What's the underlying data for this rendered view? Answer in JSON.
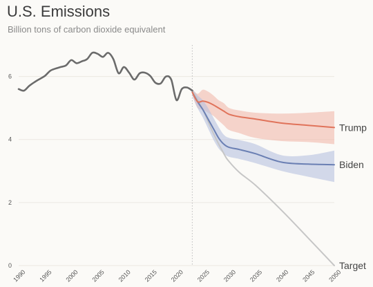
{
  "header": {
    "title": "U.S. Emissions",
    "subtitle": "Billion tons of carbon dioxide equivalent"
  },
  "colors": {
    "historical": "#6b6b6b",
    "trump": "#e0735a",
    "trump_band": "#f1b9ab",
    "biden": "#6a7fb3",
    "biden_band": "#b8c2df",
    "target": "#c6c6c6",
    "grid": "#ebe8e2",
    "divider": "#bbbbbb"
  },
  "chart_data": {
    "type": "line",
    "title": "U.S. Emissions",
    "subtitle": "Billion tons of carbon dioxide equivalent",
    "xlabel": "",
    "ylabel": "",
    "xlim": [
      1990,
      2050
    ],
    "ylim": [
      0,
      7
    ],
    "yticks": [
      0,
      2,
      4,
      6
    ],
    "xticks": [
      1990,
      1995,
      2000,
      2005,
      2010,
      2015,
      2020,
      2025,
      2030,
      2035,
      2040,
      2045,
      2050
    ],
    "grid": true,
    "projection_start": 2023,
    "series": [
      {
        "key": "historical",
        "x": [
          1990,
          1991,
          1992,
          1993,
          1994,
          1995,
          1996,
          1997,
          1998,
          1999,
          2000,
          2001,
          2002,
          2003,
          2004,
          2005,
          2006,
          2007,
          2008,
          2009,
          2010,
          2011,
          2012,
          2013,
          2014,
          2015,
          2016,
          2017,
          2018,
          2019,
          2020,
          2021,
          2022,
          2023
        ],
        "y": [
          5.6,
          5.55,
          5.7,
          5.82,
          5.92,
          6.02,
          6.18,
          6.25,
          6.3,
          6.35,
          6.52,
          6.42,
          6.48,
          6.55,
          6.75,
          6.72,
          6.62,
          6.75,
          6.55,
          6.1,
          6.3,
          6.12,
          5.9,
          6.1,
          6.12,
          6.02,
          5.8,
          5.78,
          6.0,
          5.9,
          5.25,
          5.6,
          5.65,
          5.55
        ]
      },
      {
        "key": "trump",
        "name": "Trump",
        "x": [
          2023,
          2024,
          2025,
          2026,
          2027,
          2028,
          2029,
          2030,
          2032,
          2035,
          2040,
          2045,
          2050
        ],
        "y": [
          5.5,
          5.2,
          5.22,
          5.18,
          5.1,
          5.0,
          4.9,
          4.8,
          4.72,
          4.65,
          4.52,
          4.45,
          4.38
        ],
        "band_low": [
          5.4,
          5.0,
          4.95,
          4.85,
          4.75,
          4.6,
          4.45,
          4.3,
          4.2,
          4.05,
          3.95,
          3.92,
          3.85
        ],
        "band_high": [
          5.6,
          5.45,
          5.58,
          5.52,
          5.4,
          5.25,
          5.15,
          5.0,
          4.92,
          4.85,
          4.82,
          4.85,
          4.9
        ]
      },
      {
        "key": "biden",
        "name": "Biden",
        "x": [
          2023,
          2024,
          2025,
          2026,
          2027,
          2028,
          2029,
          2030,
          2032,
          2035,
          2040,
          2045,
          2050
        ],
        "y": [
          5.5,
          5.2,
          4.95,
          4.65,
          4.35,
          4.05,
          3.85,
          3.75,
          3.68,
          3.55,
          3.28,
          3.22,
          3.2
        ],
        "band_low": [
          5.4,
          5.0,
          4.7,
          4.35,
          4.0,
          3.72,
          3.55,
          3.45,
          3.38,
          3.25,
          3.0,
          2.82,
          2.65
        ],
        "band_high": [
          5.6,
          5.4,
          5.25,
          5.0,
          4.7,
          4.4,
          4.15,
          4.05,
          3.98,
          3.85,
          3.5,
          3.5,
          3.65
        ]
      },
      {
        "key": "target",
        "name": "Target",
        "x": [
          2023,
          2025,
          2027,
          2029,
          2030,
          2032,
          2035,
          2040,
          2045,
          2050
        ],
        "y": [
          5.55,
          4.95,
          4.2,
          3.55,
          3.3,
          2.95,
          2.55,
          1.75,
          0.88,
          0.0
        ]
      }
    ]
  }
}
